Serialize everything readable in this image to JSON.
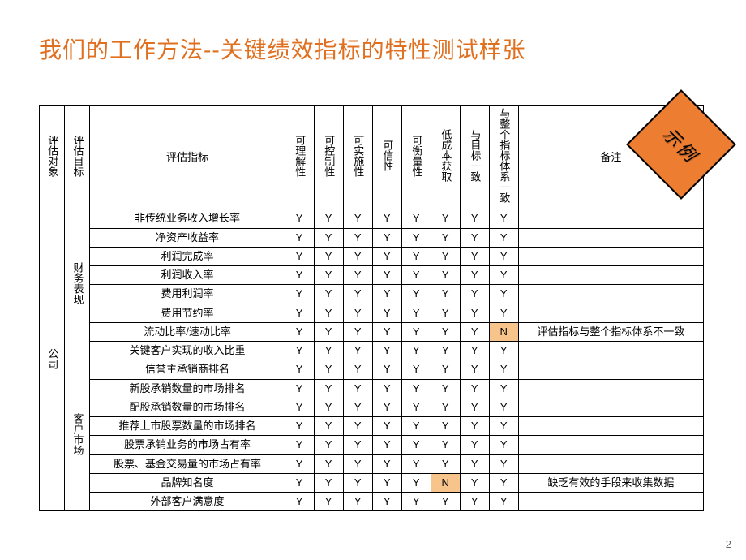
{
  "title": "我们的工作方法--关键绩效指标的特性测试样张",
  "badge": "示例",
  "page_number": "2",
  "headers": {
    "c0": "评估对象",
    "c1": "评估目标",
    "c2": "评估指标",
    "c3": "可理解性",
    "c4": "可控制性",
    "c5": "可实施性",
    "c6": "可信性",
    "c7": "可衡量性",
    "c8": "低成本获取",
    "c9": "与目标一致",
    "c10": "与整个指标体系一致",
    "c11": "备注"
  },
  "object_label": "公司",
  "groups": [
    {
      "label": "财务表现",
      "rows": [
        {
          "ind": "非传统业务收入增长率",
          "v": [
            "Y",
            "Y",
            "Y",
            "Y",
            "Y",
            "Y",
            "Y",
            "Y"
          ],
          "hl": [],
          "note": ""
        },
        {
          "ind": "净资产收益率",
          "v": [
            "Y",
            "Y",
            "Y",
            "Y",
            "Y",
            "Y",
            "Y",
            "Y"
          ],
          "hl": [],
          "note": ""
        },
        {
          "ind": "利润完成率",
          "v": [
            "Y",
            "Y",
            "Y",
            "Y",
            "Y",
            "Y",
            "Y",
            "Y"
          ],
          "hl": [],
          "note": ""
        },
        {
          "ind": "利润收入率",
          "v": [
            "Y",
            "Y",
            "Y",
            "Y",
            "Y",
            "Y",
            "Y",
            "Y"
          ],
          "hl": [],
          "note": ""
        },
        {
          "ind": "费用利润率",
          "v": [
            "Y",
            "Y",
            "Y",
            "Y",
            "Y",
            "Y",
            "Y",
            "Y"
          ],
          "hl": [],
          "note": ""
        },
        {
          "ind": "费用节约率",
          "v": [
            "Y",
            "Y",
            "Y",
            "Y",
            "Y",
            "Y",
            "Y",
            "Y"
          ],
          "hl": [],
          "note": ""
        },
        {
          "ind": "流动比率/速动比率",
          "v": [
            "Y",
            "Y",
            "Y",
            "Y",
            "Y",
            "Y",
            "Y",
            "N"
          ],
          "hl": [
            7
          ],
          "note": "评估指标与整个指标体系不一致"
        },
        {
          "ind": "关键客户实现的收入比重",
          "v": [
            "Y",
            "Y",
            "Y",
            "Y",
            "Y",
            "Y",
            "Y",
            "Y"
          ],
          "hl": [],
          "note": ""
        }
      ]
    },
    {
      "label": "客户市场",
      "rows": [
        {
          "ind": "信誉主承销商排名",
          "v": [
            "Y",
            "Y",
            "Y",
            "Y",
            "Y",
            "Y",
            "Y",
            "Y"
          ],
          "hl": [],
          "note": ""
        },
        {
          "ind": "新股承销数量的市场排名",
          "v": [
            "Y",
            "Y",
            "Y",
            "Y",
            "Y",
            "Y",
            "Y",
            "Y"
          ],
          "hl": [],
          "note": ""
        },
        {
          "ind": "配股承销数量的市场排名",
          "v": [
            "Y",
            "Y",
            "Y",
            "Y",
            "Y",
            "Y",
            "Y",
            "Y"
          ],
          "hl": [],
          "note": ""
        },
        {
          "ind": "推荐上市股票数量的市场排名",
          "v": [
            "Y",
            "Y",
            "Y",
            "Y",
            "Y",
            "Y",
            "Y",
            "Y"
          ],
          "hl": [],
          "note": ""
        },
        {
          "ind": "股票承销业务的市场占有率",
          "v": [
            "Y",
            "Y",
            "Y",
            "Y",
            "Y",
            "Y",
            "Y",
            "Y"
          ],
          "hl": [],
          "note": ""
        },
        {
          "ind": "股票、基金交易量的市场占有率",
          "v": [
            "Y",
            "Y",
            "Y",
            "Y",
            "Y",
            "Y",
            "Y",
            "Y"
          ],
          "hl": [],
          "note": ""
        },
        {
          "ind": "品牌知名度",
          "v": [
            "Y",
            "Y",
            "Y",
            "Y",
            "Y",
            "N",
            "Y",
            "Y"
          ],
          "hl": [
            5
          ],
          "note": "缺乏有效的手段来收集数据"
        },
        {
          "ind": "外部客户满意度",
          "v": [
            "Y",
            "Y",
            "Y",
            "Y",
            "Y",
            "Y",
            "Y",
            "Y"
          ],
          "hl": [],
          "note": ""
        }
      ]
    }
  ],
  "style": {
    "title_color": "#e07020",
    "title_fontsize": 28,
    "badge_bg": "#ed7d31",
    "badge_border": "#000000",
    "highlight_bg": "#f7c58b",
    "table_border": "#000000",
    "body_bg": "#ffffff",
    "font_family": "SimSun",
    "cell_fontsize": 13
  }
}
